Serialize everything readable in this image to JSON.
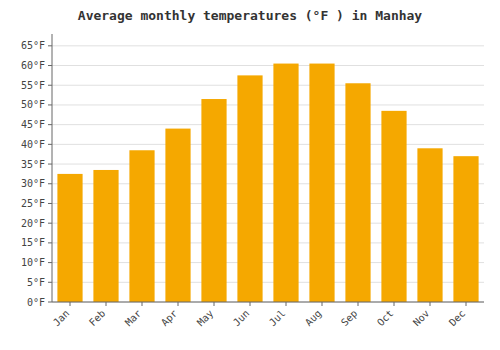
{
  "chart_data": {
    "type": "bar",
    "title": "Average monthly temperatures (°F ) in Manhay",
    "categories": [
      "Jan",
      "Feb",
      "Mar",
      "Apr",
      "May",
      "Jun",
      "Jul",
      "Aug",
      "Sep",
      "Oct",
      "Nov",
      "Dec"
    ],
    "values": [
      32.5,
      33.5,
      38.5,
      44.0,
      51.5,
      57.5,
      60.5,
      60.5,
      55.5,
      48.5,
      39.0,
      37.0
    ],
    "color": "#F5A800",
    "ylim": [
      0,
      68
    ],
    "yticks": [
      {
        "value": 0,
        "label": "0°F"
      },
      {
        "value": 5,
        "label": "5°F"
      },
      {
        "value": 10,
        "label": "10°F"
      },
      {
        "value": 15,
        "label": "15°F"
      },
      {
        "value": 20,
        "label": "20°F"
      },
      {
        "value": 25,
        "label": "25°F"
      },
      {
        "value": 30,
        "label": "30°F"
      },
      {
        "value": 35,
        "label": "35°F"
      },
      {
        "value": 40,
        "label": "40°F"
      },
      {
        "value": 45,
        "label": "45°F"
      },
      {
        "value": 50,
        "label": "50°F"
      },
      {
        "value": 55,
        "label": "55°F"
      },
      {
        "value": 60,
        "label": "60°F"
      },
      {
        "value": 65,
        "label": "65°F"
      }
    ],
    "grid": true
  }
}
